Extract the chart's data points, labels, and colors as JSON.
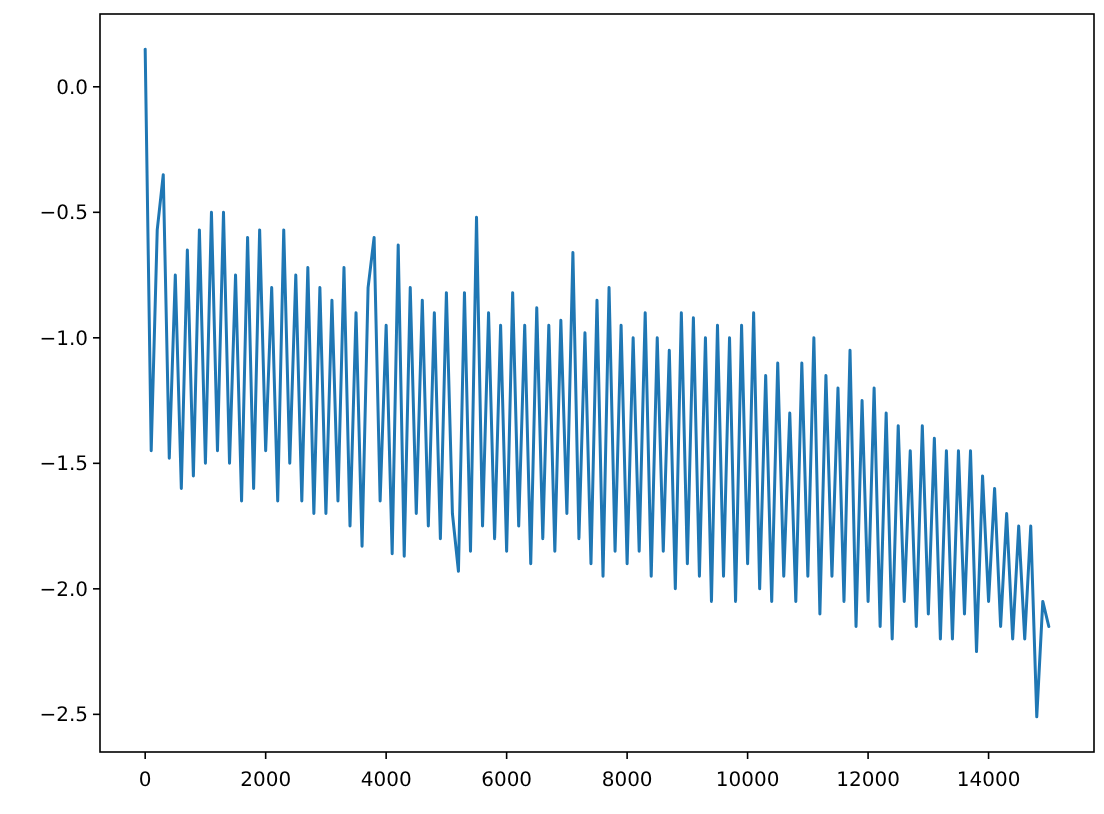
{
  "chart_data": {
    "type": "line",
    "color": "#1f77b4",
    "x": [
      0,
      100,
      200,
      300,
      400,
      500,
      600,
      700,
      800,
      900,
      1000,
      1100,
      1200,
      1300,
      1400,
      1500,
      1600,
      1700,
      1800,
      1900,
      2000,
      2100,
      2200,
      2300,
      2400,
      2500,
      2600,
      2700,
      2800,
      2900,
      3000,
      3100,
      3200,
      3300,
      3400,
      3500,
      3600,
      3700,
      3800,
      3900,
      4000,
      4100,
      4200,
      4300,
      4400,
      4500,
      4600,
      4700,
      4800,
      4900,
      5000,
      5100,
      5200,
      5300,
      5400,
      5500,
      5600,
      5700,
      5800,
      5900,
      6000,
      6100,
      6200,
      6300,
      6400,
      6500,
      6600,
      6700,
      6800,
      6900,
      7000,
      7100,
      7200,
      7300,
      7400,
      7500,
      7600,
      7700,
      7800,
      7900,
      8000,
      8100,
      8200,
      8300,
      8400,
      8500,
      8600,
      8700,
      8800,
      8900,
      9000,
      9100,
      9200,
      9300,
      9400,
      9500,
      9600,
      9700,
      9800,
      9900,
      10000,
      10100,
      10200,
      10300,
      10400,
      10500,
      10600,
      10700,
      10800,
      10900,
      11000,
      11100,
      11200,
      11300,
      11400,
      11500,
      11600,
      11700,
      11800,
      11900,
      12000,
      12100,
      12200,
      12300,
      12400,
      12500,
      12600,
      12700,
      12800,
      12900,
      13000,
      13100,
      13200,
      13300,
      13400,
      13500,
      13600,
      13700,
      13800,
      13900,
      14000,
      14100,
      14200,
      14300,
      14400,
      14500,
      14600,
      14700,
      14800,
      14900,
      15000
    ],
    "values": [
      0.15,
      -1.45,
      -0.57,
      -0.35,
      -1.48,
      -0.75,
      -1.6,
      -0.65,
      -1.55,
      -0.57,
      -1.5,
      -0.5,
      -1.45,
      -0.5,
      -1.5,
      -0.75,
      -1.65,
      -0.6,
      -1.6,
      -0.57,
      -1.45,
      -0.8,
      -1.65,
      -0.57,
      -1.5,
      -0.75,
      -1.65,
      -0.72,
      -1.7,
      -0.8,
      -1.7,
      -0.85,
      -1.65,
      -0.72,
      -1.75,
      -0.9,
      -1.83,
      -0.8,
      -0.6,
      -1.65,
      -0.95,
      -1.86,
      -0.63,
      -1.87,
      -0.8,
      -1.7,
      -0.85,
      -1.75,
      -0.9,
      -1.8,
      -0.82,
      -1.7,
      -1.93,
      -0.82,
      -1.85,
      -0.52,
      -1.75,
      -0.9,
      -1.8,
      -0.95,
      -1.85,
      -0.82,
      -1.75,
      -0.95,
      -1.9,
      -0.88,
      -1.8,
      -0.95,
      -1.85,
      -0.93,
      -1.7,
      -0.66,
      -1.8,
      -0.98,
      -1.9,
      -0.85,
      -1.95,
      -0.8,
      -1.85,
      -0.95,
      -1.9,
      -1.0,
      -1.85,
      -0.9,
      -1.95,
      -1.0,
      -1.85,
      -1.05,
      -2.0,
      -0.9,
      -1.9,
      -0.92,
      -1.95,
      -1.0,
      -2.05,
      -0.95,
      -1.95,
      -1.0,
      -2.05,
      -0.95,
      -1.9,
      -0.9,
      -2.0,
      -1.15,
      -2.05,
      -1.1,
      -1.95,
      -1.3,
      -2.05,
      -1.1,
      -1.95,
      -1.0,
      -2.1,
      -1.15,
      -1.95,
      -1.2,
      -2.05,
      -1.05,
      -2.15,
      -1.25,
      -2.05,
      -1.2,
      -2.15,
      -1.3,
      -2.2,
      -1.35,
      -2.05,
      -1.45,
      -2.15,
      -1.35,
      -2.1,
      -1.4,
      -2.2,
      -1.45,
      -2.2,
      -1.45,
      -2.1,
      -1.45,
      -2.25,
      -1.55,
      -2.05,
      -1.6,
      -2.15,
      -1.7,
      -2.2,
      -1.75,
      -2.2,
      -1.75,
      -2.51,
      -2.05,
      -2.15
    ],
    "xlim": [
      -750,
      15750
    ],
    "xticks": [
      0,
      2000,
      4000,
      6000,
      8000,
      10000,
      12000,
      14000
    ],
    "ylim": [
      -2.65,
      0.29
    ],
    "yticks": [
      {
        "value": -2.5,
        "label": "−2.5"
      },
      {
        "value": -2.0,
        "label": "−2.0"
      },
      {
        "value": -1.5,
        "label": "−1.5"
      },
      {
        "value": -1.0,
        "label": "−1.0"
      },
      {
        "value": -0.5,
        "label": "−0.5"
      },
      {
        "value": 0,
        "label": "0.0"
      }
    ]
  }
}
